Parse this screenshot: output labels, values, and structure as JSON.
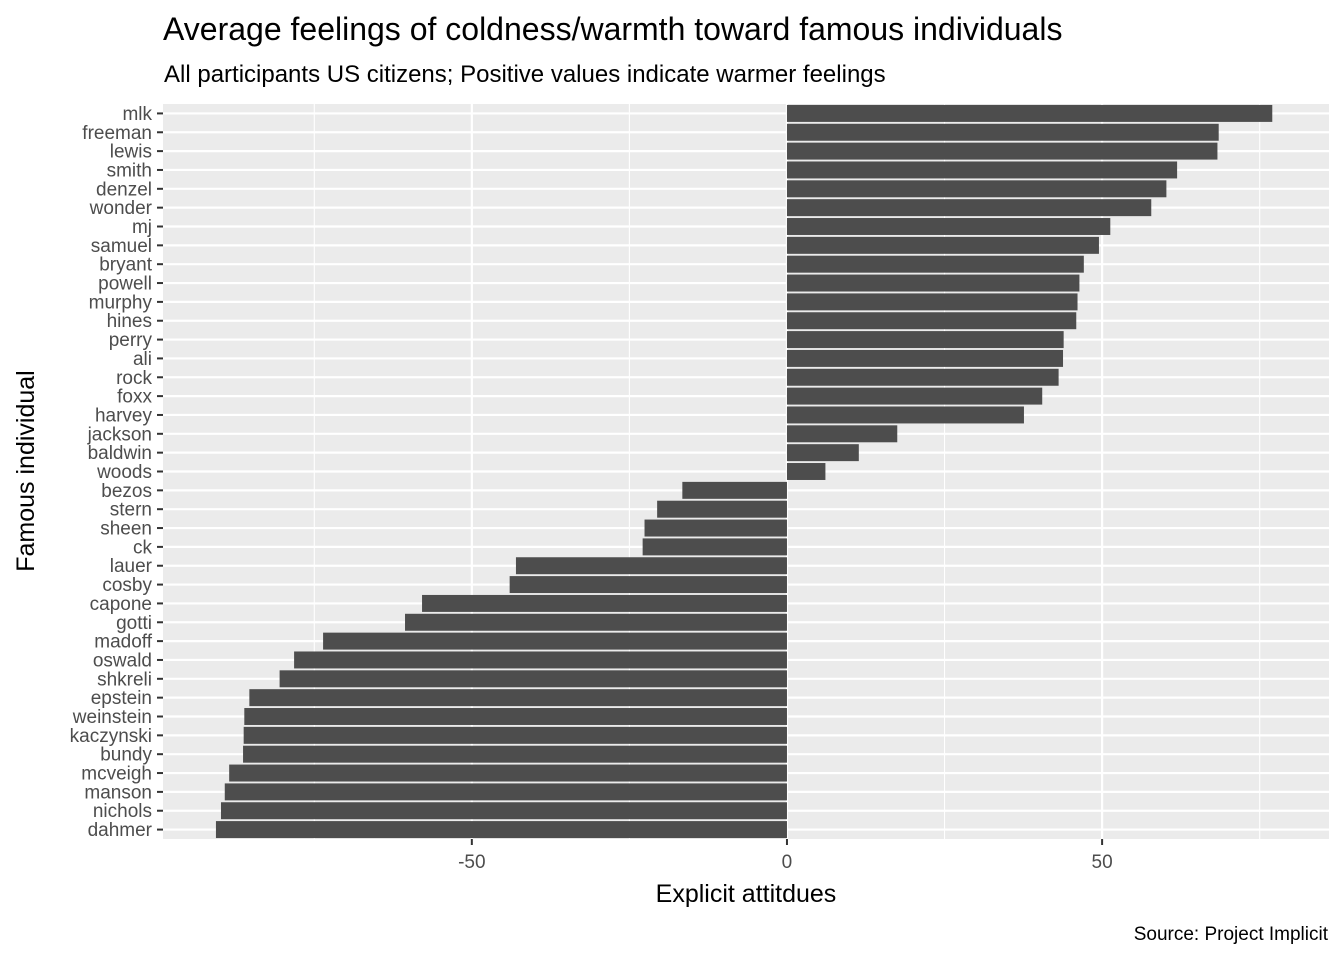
{
  "chart_data": {
    "type": "bar",
    "orientation": "horizontal",
    "title": "Average feelings of coldness/warmth toward famous individuals",
    "subtitle": "All participants US citizens; Positive values indicate warmer feelings",
    "xlabel": "Explicit attitdues",
    "ylabel": "Famous individual",
    "caption": "Source: Project Implicit",
    "xlim": [
      -99,
      86
    ],
    "xticks": [
      -50,
      0,
      50
    ],
    "xtick_labels": [
      "-50",
      "0",
      "50"
    ],
    "grid": true,
    "bar_color": "#4d4d4d",
    "panel_color": "#ebebeb",
    "categories": [
      "mlk",
      "freeman",
      "lewis",
      "smith",
      "denzel",
      "wonder",
      "mj",
      "samuel",
      "bryant",
      "powell",
      "murphy",
      "hines",
      "perry",
      "ali",
      "rock",
      "foxx",
      "harvey",
      "jackson",
      "baldwin",
      "woods",
      "bezos",
      "stern",
      "sheen",
      "ck",
      "lauer",
      "cosby",
      "capone",
      "gotti",
      "madoff",
      "oswald",
      "shkreli",
      "epstein",
      "weinstein",
      "kaczynski",
      "bundy",
      "mcveigh",
      "manson",
      "nichols",
      "dahmer"
    ],
    "values": [
      77,
      68.5,
      68.3,
      61.9,
      60.2,
      57.8,
      51.3,
      49.5,
      47.1,
      46.4,
      46.1,
      45.9,
      43.9,
      43.8,
      43.1,
      40.5,
      37.6,
      17.5,
      11.4,
      6.1,
      -16.6,
      -20.6,
      -22.6,
      -22.9,
      -43,
      -44,
      -57.9,
      -60.6,
      -73.6,
      -78.2,
      -80.5,
      -85.3,
      -86.1,
      -86.2,
      -86.3,
      -88.5,
      -89.2,
      -89.8,
      -90.6
    ]
  }
}
